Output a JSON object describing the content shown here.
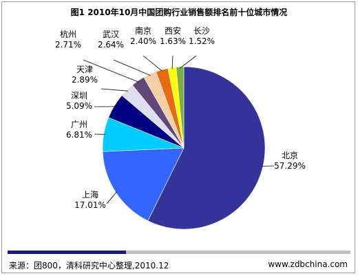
{
  "title": "图1 2010年10月中国团购行业销售额排名前十位城市情况",
  "footer": {
    "source": "来源：团800，清科研究中心整理,2010.12",
    "website": "www.zdbchina.com"
  },
  "colors": {
    "footer_bar_dark": "#1a1a80",
    "footer_bar_light": "#c0c0c0"
  },
  "chart_data": {
    "type": "pie",
    "title": "图1 2010年10月中国团购行业销售额排名前十位城市情况",
    "unit": "%",
    "slices": [
      {
        "label": "北京",
        "value": 57.29,
        "display": "57.29%",
        "color": "#333399"
      },
      {
        "label": "上海",
        "value": 17.01,
        "display": "17.01%",
        "color": "#3366ff"
      },
      {
        "label": "广州",
        "value": 6.81,
        "display": "6.81%",
        "color": "#00ccff"
      },
      {
        "label": "深圳",
        "value": 5.09,
        "display": "5.09%",
        "color": "#000080"
      },
      {
        "label": "天津",
        "value": 2.89,
        "display": "2.89%",
        "color": "#ddddf0"
      },
      {
        "label": "杭州",
        "value": 2.71,
        "display": "2.71%",
        "color": "#604878"
      },
      {
        "label": "武汉",
        "value": 2.64,
        "display": "2.64%",
        "color": "#f5cfa8"
      },
      {
        "label": "南京",
        "value": 2.4,
        "display": "2.40%",
        "color": "#e86a10"
      },
      {
        "label": "西安",
        "value": 1.63,
        "display": "1.63%",
        "color": "#ffff00"
      },
      {
        "label": "长沙",
        "value": 1.52,
        "display": "1.52%",
        "color": "#7ab040"
      }
    ]
  }
}
